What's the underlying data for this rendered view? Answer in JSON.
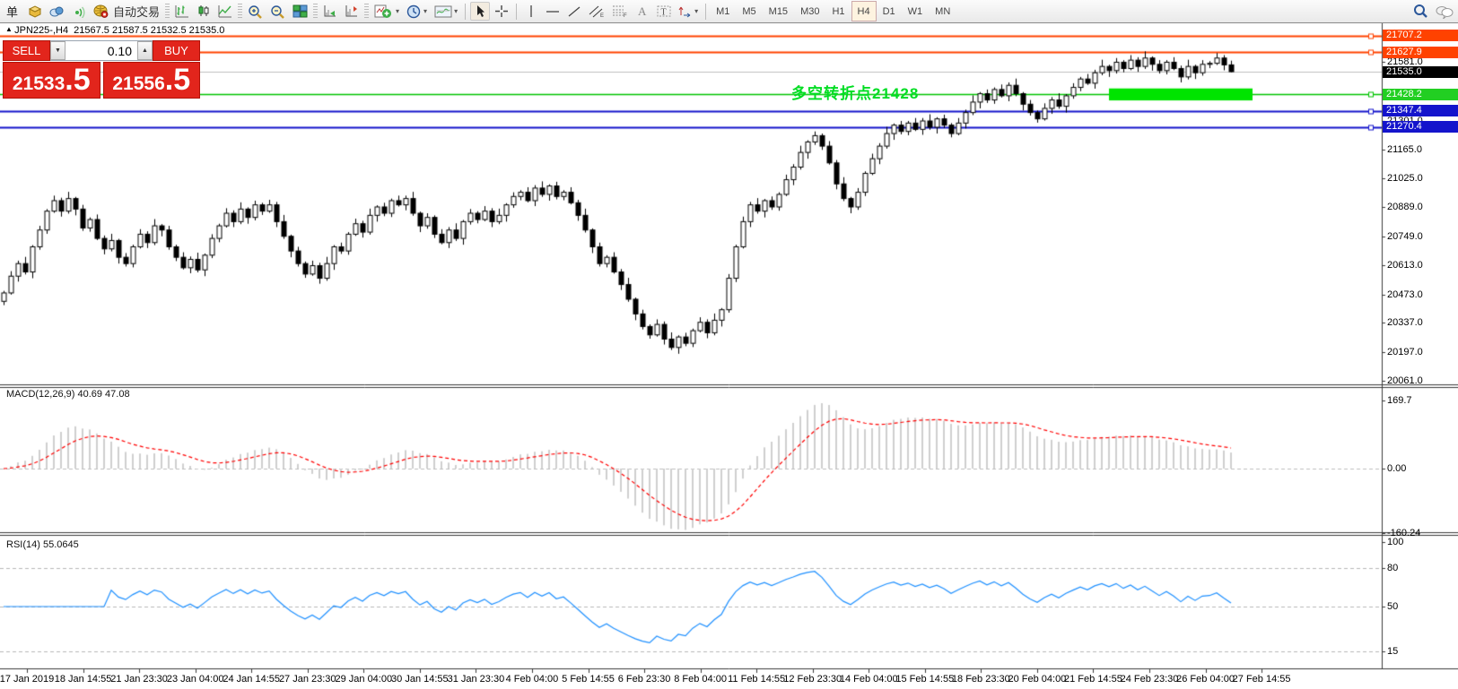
{
  "toolbar": {
    "new_order_label": "单",
    "autotrade_label": "自动交易",
    "timeframes": [
      "M1",
      "M5",
      "M15",
      "M30",
      "H1",
      "H4",
      "D1",
      "W1",
      "MN"
    ],
    "active_timeframe": "H4",
    "text_tool_label": "A"
  },
  "trade_panel": {
    "sell_label": "SELL",
    "buy_label": "BUY",
    "volume": "0.10",
    "sell_price_main": "21533",
    "sell_price_frac": ".5",
    "buy_price_main": "21556",
    "buy_price_frac": ".5",
    "panel_color": "#e2251c"
  },
  "chart_data": {
    "type": "candlestick",
    "title": "JPN225-,H4  21567.5 21587.5 21532.5 21535.0",
    "symbol": "JPN225-",
    "period": "H4",
    "ohlc_display": {
      "open": 21567.5,
      "high": 21587.5,
      "low": 21532.5,
      "close": 21535.0
    },
    "first_open": 20440,
    "closes": [
      20480,
      20560,
      20620,
      20580,
      20700,
      20780,
      20870,
      20920,
      20870,
      20930,
      20880,
      20790,
      20830,
      20740,
      20690,
      20730,
      20650,
      20620,
      20700,
      20760,
      20720,
      20800,
      20780,
      20700,
      20650,
      20600,
      20640,
      20590,
      20660,
      20740,
      20800,
      20860,
      20820,
      20880,
      20840,
      20900,
      20870,
      20900,
      20820,
      20750,
      20680,
      20620,
      20570,
      20610,
      20550,
      20620,
      20700,
      20680,
      20760,
      20810,
      20770,
      20850,
      20890,
      20860,
      20920,
      20900,
      20930,
      20860,
      20800,
      20840,
      20760,
      20720,
      20780,
      20740,
      20820,
      20860,
      20830,
      20870,
      20820,
      20850,
      20900,
      20940,
      20960,
      20920,
      20980,
      20950,
      20990,
      20940,
      20960,
      20910,
      20850,
      20780,
      20700,
      20620,
      20650,
      20580,
      20520,
      20450,
      20380,
      20320,
      20280,
      20330,
      20260,
      20220,
      20270,
      20240,
      20300,
      20340,
      20290,
      20350,
      20400,
      20550,
      20700,
      20820,
      20900,
      20870,
      20920,
      20890,
      20950,
      21020,
      21080,
      21150,
      21200,
      21230,
      21180,
      21100,
      21000,
      20930,
      20890,
      20960,
      21050,
      21120,
      21180,
      21240,
      21280,
      21250,
      21290,
      21260,
      21300,
      21270,
      21310,
      21280,
      21240,
      21290,
      21340,
      21390,
      21430,
      21400,
      21450,
      21420,
      21470,
      21430,
      21380,
      21340,
      21310,
      21360,
      21400,
      21370,
      21420,
      21460,
      21500,
      21480,
      21530,
      21560,
      21540,
      21580,
      21550,
      21590,
      21560,
      21600,
      21570,
      21540,
      21580,
      21550,
      21510,
      21560,
      21530,
      21570,
      21575,
      21600,
      21567.5,
      21535
    ],
    "last_ohlc": [
      21567.5,
      21587.5,
      21532.5,
      21535.0
    ],
    "levels": [
      {
        "value": 21707.2,
        "color": "#ff4200",
        "width": 2
      },
      {
        "value": 21627.9,
        "color": "#ff4200",
        "width": 2
      },
      {
        "value": 21535.0,
        "color": "#c0c0c0",
        "width": 1
      },
      {
        "value": 21428.2,
        "color": "#00c400",
        "width": 1.5
      },
      {
        "value": 21347.4,
        "color": "#1414cc",
        "width": 2
      },
      {
        "value": 21270.4,
        "color": "#1414cc",
        "width": 2
      }
    ],
    "badges": [
      {
        "value": 21707.2,
        "label": "21707.2",
        "bg": "#ff4200"
      },
      {
        "value": 21627.9,
        "label": "21627.9",
        "bg": "#ff4200"
      },
      {
        "value": 21535.0,
        "label": "21535.0",
        "bg": "#000000"
      },
      {
        "value": 21428.2,
        "label": "21428.2",
        "bg": "#22cf22"
      },
      {
        "value": 21347.4,
        "label": "21347.4",
        "bg": "#1414cc"
      },
      {
        "value": 21270.4,
        "label": "21270.4",
        "bg": "#1414cc"
      }
    ],
    "plain_axis_labels": [
      {
        "value": 21581.0,
        "label": "21581.0"
      },
      {
        "value": 21301.0,
        "label": "21301.0"
      }
    ],
    "price_ticks": [
      "21165.0",
      "21025.0",
      "20889.0",
      "20749.0",
      "20613.0",
      "20473.0",
      "20337.0",
      "20197.0",
      "20061.0"
    ],
    "price_tick_values": [
      21165,
      21025,
      20889,
      20749,
      20613,
      20473,
      20337,
      20197,
      20061
    ],
    "highlight_rect": {
      "price_top": 21455,
      "price_bottom": 21398,
      "bar_from": 154,
      "bar_to": 174,
      "color": "#00e400"
    },
    "annotation": {
      "text": "多空转折点21428",
      "color": "#00dd22"
    },
    "indicators": {
      "macd": {
        "label": "MACD(12,26,9) 40.69 47.08",
        "fast": 12,
        "slow": 26,
        "signal": 9,
        "axis_labels": [
          "169.7",
          "0.00",
          "-160.24"
        ],
        "axis_values": [
          169.7,
          0.0,
          -160.24
        ],
        "histogram_color": "#cfcfcf",
        "signal_color": "#ff0000"
      },
      "rsi": {
        "label": "RSI(14) 55.0645",
        "period": 14,
        "value": 55.0645,
        "axis_labels": [
          "100",
          "80",
          "50",
          "15"
        ],
        "axis_values": [
          100,
          80,
          50,
          15
        ],
        "line_color": "#1e90ff"
      }
    },
    "time_labels": [
      "17 Jan 2019",
      "18 Jan 14:55",
      "21 Jan 23:30",
      "23 Jan 04:00",
      "24 Jan 14:55",
      "27 Jan 23:30",
      "29 Jan 04:00",
      "30 Jan 14:55",
      "31 Jan 23:30",
      "4 Feb 04:00",
      "5 Feb 14:55",
      "6 Feb 23:30",
      "8 Feb 04:00",
      "11 Feb 14:55",
      "12 Feb 23:30",
      "14 Feb 04:00",
      "15 Feb 14:55",
      "18 Feb 23:30",
      "20 Feb 04:00",
      "21 Feb 14:55",
      "24 Feb 23:30",
      "26 Feb 04:00",
      "27 Feb 14:55"
    ]
  }
}
